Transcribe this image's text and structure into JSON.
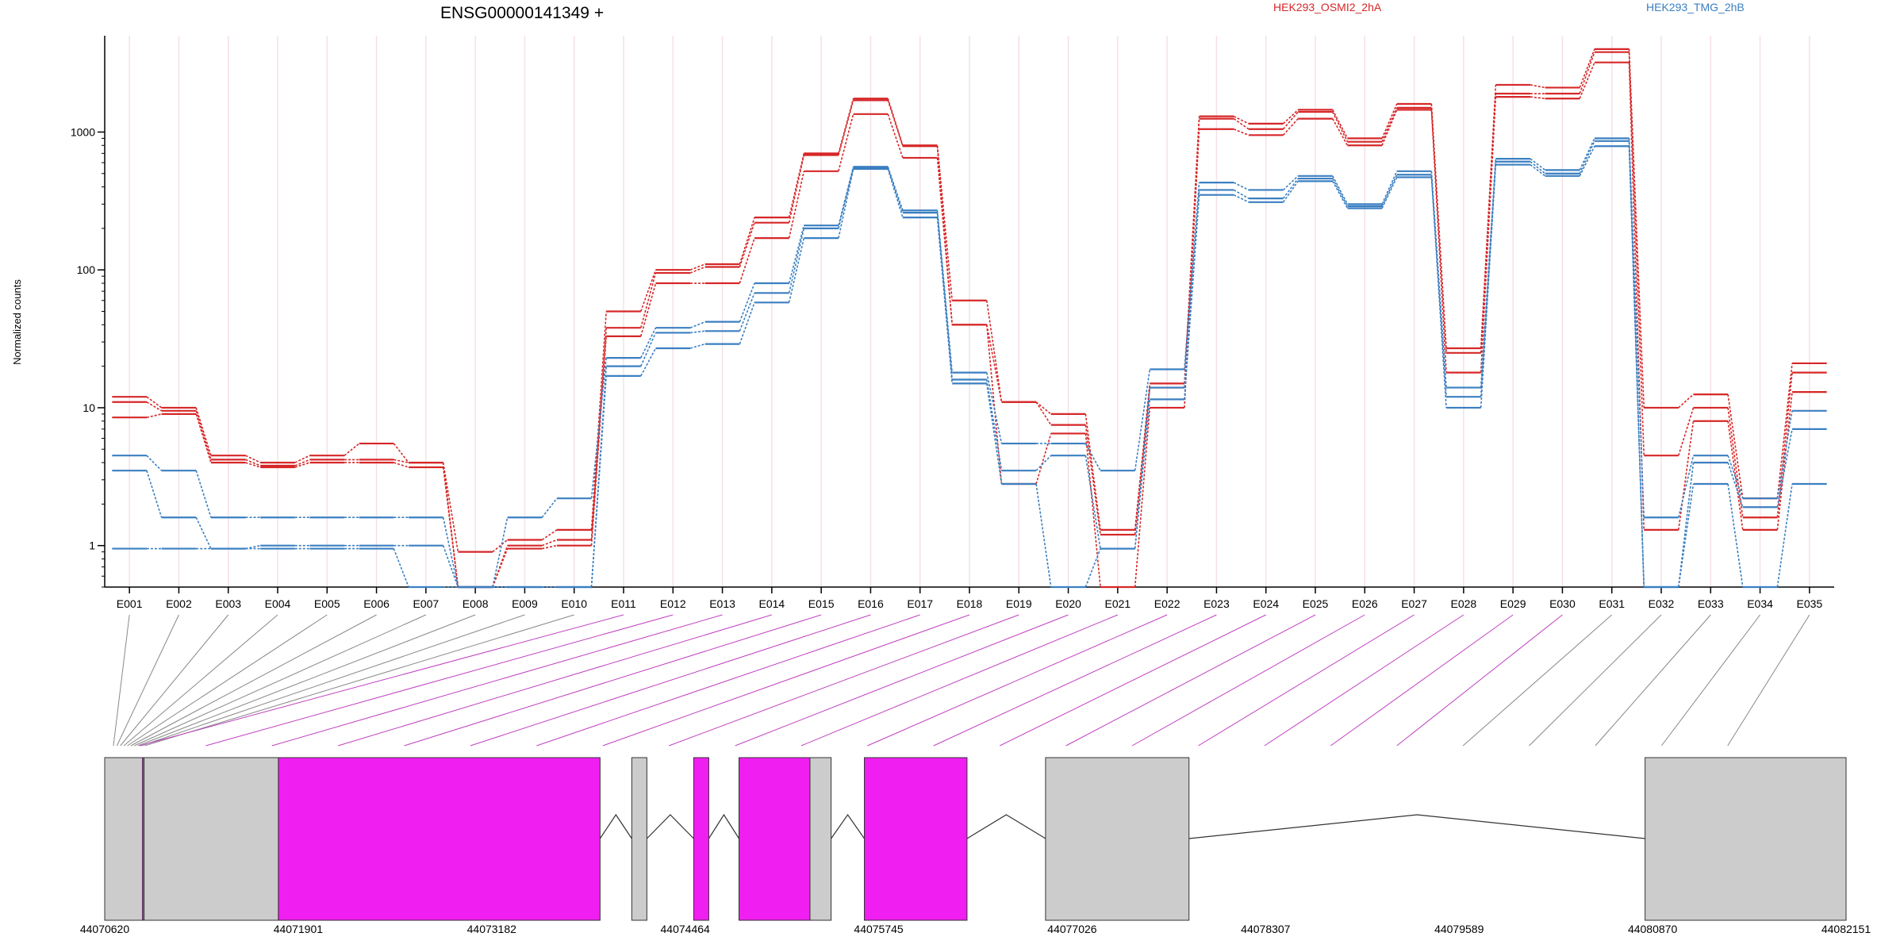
{
  "chart_data": {
    "type": "line",
    "title": "ENSG00000141349 +",
    "ylabel": "Normalized counts",
    "y_scale": "log",
    "ylim": [
      0.5,
      5000
    ],
    "y_ticks": [
      1,
      10,
      100,
      1000
    ],
    "y_tick_labels": [
      "1",
      "10",
      "100",
      "1000"
    ],
    "grid": "vertical only (light pink)",
    "legend_position": "top",
    "categories": [
      "E001",
      "E002",
      "E003",
      "E004",
      "E005",
      "E006",
      "E007",
      "E008",
      "E009",
      "E010",
      "E011",
      "E012",
      "E013",
      "E014",
      "E015",
      "E016",
      "E017",
      "E018",
      "E019",
      "E020",
      "E021",
      "E022",
      "E023",
      "E024",
      "E025",
      "E026",
      "E027",
      "E028",
      "E029",
      "E030",
      "E031",
      "E032",
      "E033",
      "E034",
      "E035"
    ],
    "colors": {
      "HEK293_OSMI2_2hA": "#d62728",
      "HEK293_TMG_2hB": "#3a7fc1",
      "highlight_exon": "#f01ef0",
      "exon": "#cccccc"
    },
    "series": [
      {
        "name": "HEK293_OSMI2_2hA",
        "values": [
          12,
          10,
          4.5,
          4.0,
          4.5,
          5.5,
          4.0,
          0.9,
          1.1,
          1.3,
          50,
          100,
          110,
          240,
          700,
          1750,
          800,
          60,
          11,
          9,
          1.3,
          15,
          1300,
          1150,
          1450,
          900,
          1600,
          27,
          2200,
          2100,
          4000,
          10,
          12.5,
          2.2,
          21
        ]
      },
      {
        "name": "HEK293_OSMI2_2hA",
        "values": [
          11,
          9.5,
          4.2,
          3.8,
          4.2,
          4.2,
          4.0,
          0.5,
          1.0,
          1.1,
          38,
          95,
          105,
          220,
          680,
          1700,
          790,
          40,
          11,
          7.5,
          1.2,
          14,
          1250,
          1050,
          1400,
          850,
          1500,
          25,
          1900,
          1900,
          3800,
          4.5,
          10,
          1.6,
          18
        ]
      },
      {
        "name": "HEK293_OSMI2_2hA",
        "values": [
          8.5,
          9.0,
          4.0,
          3.7,
          4.0,
          4.0,
          3.7,
          0.5,
          0.95,
          1.0,
          33,
          80,
          80,
          170,
          520,
          1350,
          650,
          40,
          2.8,
          6.5,
          0.5,
          10,
          1050,
          950,
          1250,
          800,
          1450,
          18,
          1800,
          1750,
          3200,
          1.3,
          8,
          1.3,
          13
        ]
      },
      {
        "name": "HEK293_TMG_2hB",
        "values": [
          4.5,
          3.5,
          1.6,
          1.6,
          1.6,
          1.6,
          1.6,
          0.5,
          1.6,
          2.2,
          23,
          38,
          42,
          80,
          210,
          560,
          270,
          18,
          5.5,
          5.5,
          3.5,
          19,
          430,
          380,
          480,
          300,
          520,
          14,
          640,
          530,
          900,
          1.6,
          4.5,
          2.2,
          9.5
        ]
      },
      {
        "name": "HEK293_TMG_2hB",
        "values": [
          3.5,
          1.6,
          0.95,
          1.0,
          1.0,
          1.0,
          1.0,
          0.5,
          0.5,
          0.5,
          20,
          35,
          36,
          68,
          200,
          550,
          260,
          16,
          3.5,
          4.5,
          0.95,
          14,
          380,
          330,
          460,
          290,
          490,
          12,
          610,
          500,
          860,
          0.5,
          4.0,
          1.9,
          7
        ]
      },
      {
        "name": "HEK293_TMG_2hB",
        "values": [
          0.95,
          0.95,
          0.95,
          0.95,
          0.95,
          0.95,
          0.5,
          0.5,
          0.5,
          0.5,
          17,
          27,
          29,
          58,
          170,
          540,
          240,
          15,
          2.8,
          0.5,
          0.95,
          11.5,
          350,
          310,
          440,
          280,
          470,
          10,
          580,
          480,
          790,
          0.5,
          2.8,
          0.5,
          2.8
        ]
      }
    ],
    "gene_model": {
      "coord_ticks": [
        "44070620",
        "44071901",
        "44073182",
        "44074464",
        "44075745",
        "44077026",
        "44078307",
        "44079589",
        "44080870",
        "44082151"
      ],
      "range": [
        44070620,
        44082151
      ],
      "exon_blocks": [
        {
          "start": 44070620,
          "end": 44071770,
          "highlight": false
        },
        {
          "start": 44070870,
          "end": 44070880,
          "highlight": true
        },
        {
          "start": 44071770,
          "end": 44073900,
          "highlight": true
        },
        {
          "start": 44074110,
          "end": 44074210,
          "highlight": false
        },
        {
          "start": 44074520,
          "end": 44074620,
          "highlight": true
        },
        {
          "start": 44074820,
          "end": 44075290,
          "highlight": true
        },
        {
          "start": 44075290,
          "end": 44075430,
          "highlight": false
        },
        {
          "start": 44075650,
          "end": 44076330,
          "highlight": true
        },
        {
          "start": 44076850,
          "end": 44077800,
          "highlight": false
        },
        {
          "start": 44080820,
          "end": 44082151,
          "highlight": false
        }
      ],
      "highlighted_exons": [
        "E011",
        "E012",
        "E013",
        "E014",
        "E015",
        "E016",
        "E017",
        "E018",
        "E019",
        "E020",
        "E021",
        "E022",
        "E023",
        "E024",
        "E025",
        "E026",
        "E027",
        "E028",
        "E029",
        "E030"
      ]
    }
  }
}
